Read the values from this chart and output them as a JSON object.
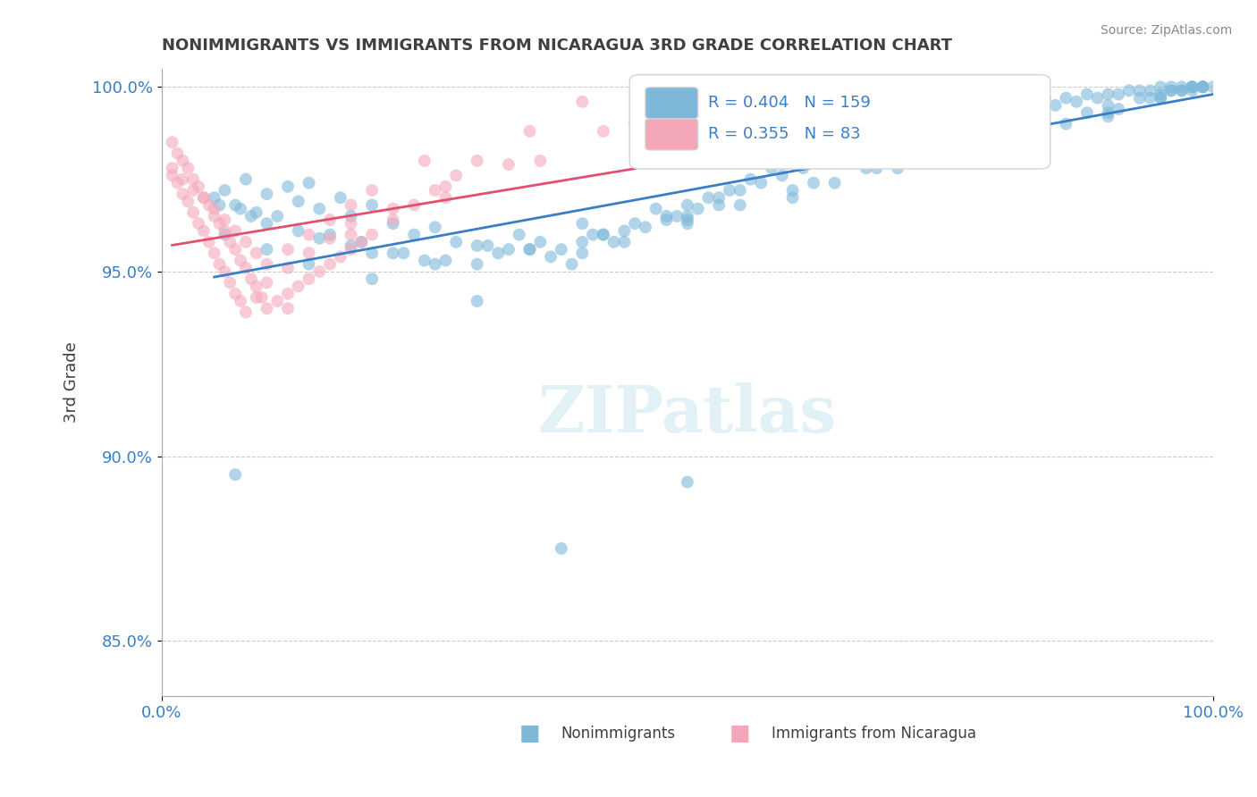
{
  "title": "NONIMMIGRANTS VS IMMIGRANTS FROM NICARAGUA 3RD GRADE CORRELATION CHART",
  "source": "Source: ZipAtlas.com",
  "xlabel": "",
  "ylabel": "3rd Grade",
  "xlim": [
    0.0,
    1.0
  ],
  "ylim": [
    0.835,
    1.005
  ],
  "yticks": [
    0.85,
    0.9,
    0.95,
    1.0
  ],
  "ytick_labels": [
    "85.0%",
    "90.0%",
    "95.0%",
    "100.0%"
  ],
  "xtick_labels": [
    "0.0%",
    "100.0%"
  ],
  "xticks": [
    0.0,
    1.0
  ],
  "blue_R": 0.404,
  "blue_N": 159,
  "pink_R": 0.355,
  "pink_N": 83,
  "blue_color": "#7EB8D9",
  "pink_color": "#F4A7B9",
  "blue_line_color": "#3A7EC6",
  "pink_line_color": "#E05070",
  "legend_text_color": "#3A7EC6",
  "title_color": "#404040",
  "source_color": "#888888",
  "background_color": "#FFFFFF",
  "grid_color": "#CCCCCC",
  "blue_x": [
    0.05,
    0.06,
    0.07,
    0.08,
    0.09,
    0.1,
    0.12,
    0.13,
    0.14,
    0.15,
    0.17,
    0.18,
    0.2,
    0.22,
    0.24,
    0.26,
    0.28,
    0.3,
    0.32,
    0.34,
    0.36,
    0.38,
    0.4,
    0.42,
    0.44,
    0.46,
    0.48,
    0.5,
    0.52,
    0.54,
    0.56,
    0.58,
    0.6,
    0.62,
    0.64,
    0.66,
    0.68,
    0.7,
    0.72,
    0.74,
    0.76,
    0.78,
    0.8,
    0.82,
    0.84,
    0.86,
    0.88,
    0.9,
    0.92,
    0.94,
    0.96,
    0.97,
    0.98,
    0.99,
    1.0,
    0.35,
    0.37,
    0.39,
    0.41,
    0.43,
    0.45,
    0.47,
    0.5,
    0.53,
    0.55,
    0.57,
    0.59,
    0.61,
    0.63,
    0.65,
    0.67,
    0.69,
    0.71,
    0.73,
    0.75,
    0.77,
    0.79,
    0.81,
    0.83,
    0.85,
    0.87,
    0.89,
    0.91,
    0.93,
    0.95,
    0.2,
    0.25,
    0.3,
    0.33,
    0.4,
    0.5,
    0.6,
    0.7,
    0.8,
    0.9,
    0.95,
    0.97,
    0.11,
    0.16,
    0.19,
    0.23,
    0.27,
    0.31,
    0.44,
    0.49,
    0.51,
    0.64,
    0.72,
    0.76,
    0.84,
    0.88,
    0.93,
    0.96,
    0.98,
    0.99,
    0.055,
    0.075,
    0.085,
    0.1,
    0.13,
    0.15,
    0.18,
    0.22,
    0.26,
    0.35,
    0.42,
    0.48,
    0.55,
    0.62,
    0.68,
    0.75,
    0.82,
    0.9,
    0.95,
    0.97,
    0.99,
    0.53,
    0.67,
    0.78,
    0.86,
    0.91,
    0.94,
    0.96,
    0.98,
    0.06,
    0.1,
    0.14,
    0.2,
    0.3,
    0.4,
    0.5,
    0.6,
    0.7,
    0.8,
    0.9,
    0.95,
    0.98,
    0.99,
    0.07,
    0.5,
    0.38
  ],
  "blue_y": [
    0.97,
    0.972,
    0.968,
    0.975,
    0.966,
    0.971,
    0.973,
    0.969,
    0.974,
    0.967,
    0.97,
    0.965,
    0.968,
    0.963,
    0.96,
    0.962,
    0.958,
    0.957,
    0.955,
    0.96,
    0.958,
    0.956,
    0.963,
    0.96,
    0.958,
    0.962,
    0.965,
    0.968,
    0.97,
    0.972,
    0.975,
    0.978,
    0.98,
    0.982,
    0.984,
    0.986,
    0.988,
    0.99,
    0.991,
    0.992,
    0.993,
    0.994,
    0.995,
    0.996,
    0.997,
    0.997,
    0.998,
    0.998,
    0.999,
    0.999,
    1.0,
    1.0,
    1.0,
    1.0,
    1.0,
    0.956,
    0.954,
    0.952,
    0.96,
    0.958,
    0.963,
    0.967,
    0.965,
    0.97,
    0.972,
    0.974,
    0.976,
    0.978,
    0.98,
    0.982,
    0.984,
    0.985,
    0.987,
    0.988,
    0.99,
    0.991,
    0.992,
    0.993,
    0.994,
    0.995,
    0.996,
    0.997,
    0.998,
    0.999,
    1.0,
    0.955,
    0.953,
    0.952,
    0.956,
    0.958,
    0.964,
    0.972,
    0.98,
    0.988,
    0.995,
    0.998,
    0.999,
    0.965,
    0.96,
    0.958,
    0.955,
    0.953,
    0.957,
    0.961,
    0.965,
    0.967,
    0.974,
    0.981,
    0.984,
    0.99,
    0.993,
    0.997,
    0.999,
    1.0,
    1.0,
    0.968,
    0.967,
    0.965,
    0.963,
    0.961,
    0.959,
    0.957,
    0.955,
    0.952,
    0.956,
    0.96,
    0.964,
    0.968,
    0.974,
    0.978,
    0.983,
    0.988,
    0.993,
    0.997,
    0.999,
    1.0,
    0.968,
    0.978,
    0.985,
    0.99,
    0.994,
    0.997,
    0.999,
    1.0,
    0.96,
    0.956,
    0.952,
    0.948,
    0.942,
    0.955,
    0.963,
    0.97,
    0.978,
    0.985,
    0.992,
    0.997,
    0.999,
    1.0,
    0.895,
    0.893,
    0.875
  ],
  "pink_x": [
    0.01,
    0.015,
    0.02,
    0.025,
    0.03,
    0.035,
    0.04,
    0.045,
    0.05,
    0.055,
    0.06,
    0.065,
    0.07,
    0.075,
    0.08,
    0.085,
    0.09,
    0.095,
    0.1,
    0.11,
    0.12,
    0.13,
    0.14,
    0.15,
    0.16,
    0.17,
    0.18,
    0.19,
    0.2,
    0.22,
    0.24,
    0.26,
    0.28,
    0.3,
    0.35,
    0.4,
    0.01,
    0.02,
    0.03,
    0.04,
    0.05,
    0.06,
    0.07,
    0.08,
    0.09,
    0.1,
    0.12,
    0.14,
    0.16,
    0.18,
    0.2,
    0.25,
    0.01,
    0.015,
    0.02,
    0.025,
    0.03,
    0.035,
    0.04,
    0.045,
    0.05,
    0.055,
    0.06,
    0.065,
    0.07,
    0.075,
    0.08,
    0.09,
    0.1,
    0.12,
    0.14,
    0.16,
    0.18,
    0.22,
    0.27,
    0.33,
    0.42,
    0.12,
    0.18,
    0.27,
    0.36,
    0.45
  ],
  "pink_y": [
    0.985,
    0.982,
    0.98,
    0.978,
    0.975,
    0.973,
    0.97,
    0.968,
    0.965,
    0.963,
    0.961,
    0.958,
    0.956,
    0.953,
    0.951,
    0.948,
    0.946,
    0.943,
    0.94,
    0.942,
    0.944,
    0.946,
    0.948,
    0.95,
    0.952,
    0.954,
    0.956,
    0.958,
    0.96,
    0.964,
    0.968,
    0.972,
    0.976,
    0.98,
    0.988,
    0.996,
    0.978,
    0.975,
    0.972,
    0.97,
    0.967,
    0.964,
    0.961,
    0.958,
    0.955,
    0.952,
    0.956,
    0.96,
    0.964,
    0.968,
    0.972,
    0.98,
    0.976,
    0.974,
    0.971,
    0.969,
    0.966,
    0.963,
    0.961,
    0.958,
    0.955,
    0.952,
    0.95,
    0.947,
    0.944,
    0.942,
    0.939,
    0.943,
    0.947,
    0.951,
    0.955,
    0.959,
    0.963,
    0.967,
    0.973,
    0.979,
    0.988,
    0.94,
    0.96,
    0.97,
    0.98,
    0.99
  ],
  "marker_size": 12,
  "marker_alpha": 0.6,
  "line_width": 2.0
}
